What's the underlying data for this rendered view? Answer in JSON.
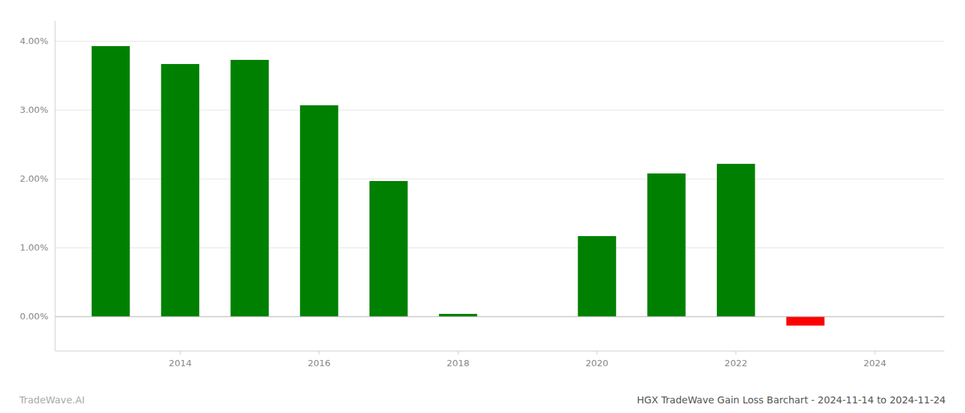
{
  "chart_data": {
    "type": "bar",
    "title": "HGX TradeWave Gain Loss Barchart - 2024-11-14 to 2024-11-24",
    "annotations": [
      "TradeWave.AI"
    ],
    "x": [
      2013,
      2014,
      2015,
      2016,
      2017,
      2018,
      2019,
      2020,
      2021,
      2022,
      2023
    ],
    "values": [
      0.0393,
      0.0367,
      0.0373,
      0.0307,
      0.0197,
      0.0004,
      0.0,
      0.0117,
      0.0208,
      0.0222,
      -0.0013
    ],
    "colors": [
      "#008000",
      "#008000",
      "#008000",
      "#008000",
      "#008000",
      "#008000",
      "#008000",
      "#008000",
      "#008000",
      "#008000",
      "#ff0000"
    ],
    "xlim": [
      2012.2,
      2025.0
    ],
    "xticks": [
      2014,
      2016,
      2018,
      2020,
      2022,
      2024
    ],
    "ylim": [
      -0.005,
      0.043
    ],
    "yticks": [
      {
        "value": 0.0,
        "label": "0.00%"
      },
      {
        "value": 0.01,
        "label": "1.00%"
      },
      {
        "value": 0.02,
        "label": "2.00%"
      },
      {
        "value": 0.03,
        "label": "3.00%"
      },
      {
        "value": 0.04,
        "label": "4.00%"
      }
    ],
    "grid": true
  }
}
